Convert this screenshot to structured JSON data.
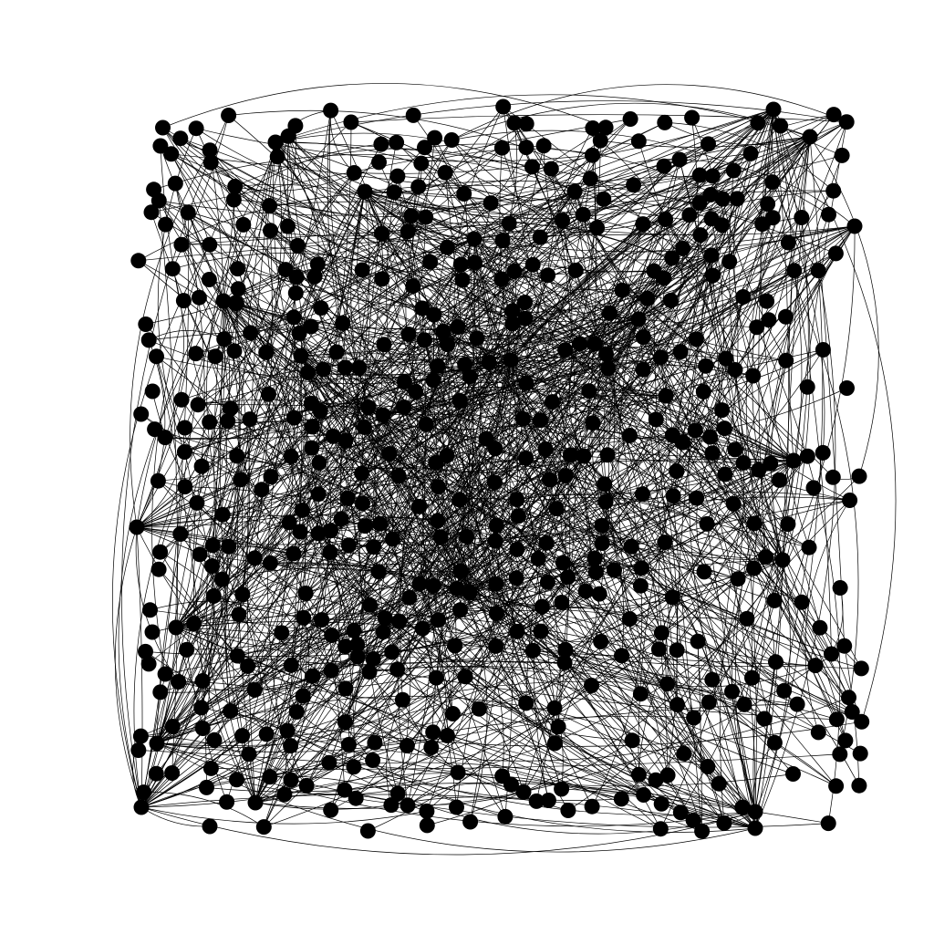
{
  "diagram": {
    "type": "network-graph",
    "node_style": "filled-circle",
    "edge_style": "curved-line",
    "node_count": 560,
    "edge_count": 1200,
    "hub_count": 26,
    "random_seed": 20240607,
    "colors": {
      "background": "#ffffff",
      "node": "#000000",
      "edge": "#000000"
    }
  }
}
